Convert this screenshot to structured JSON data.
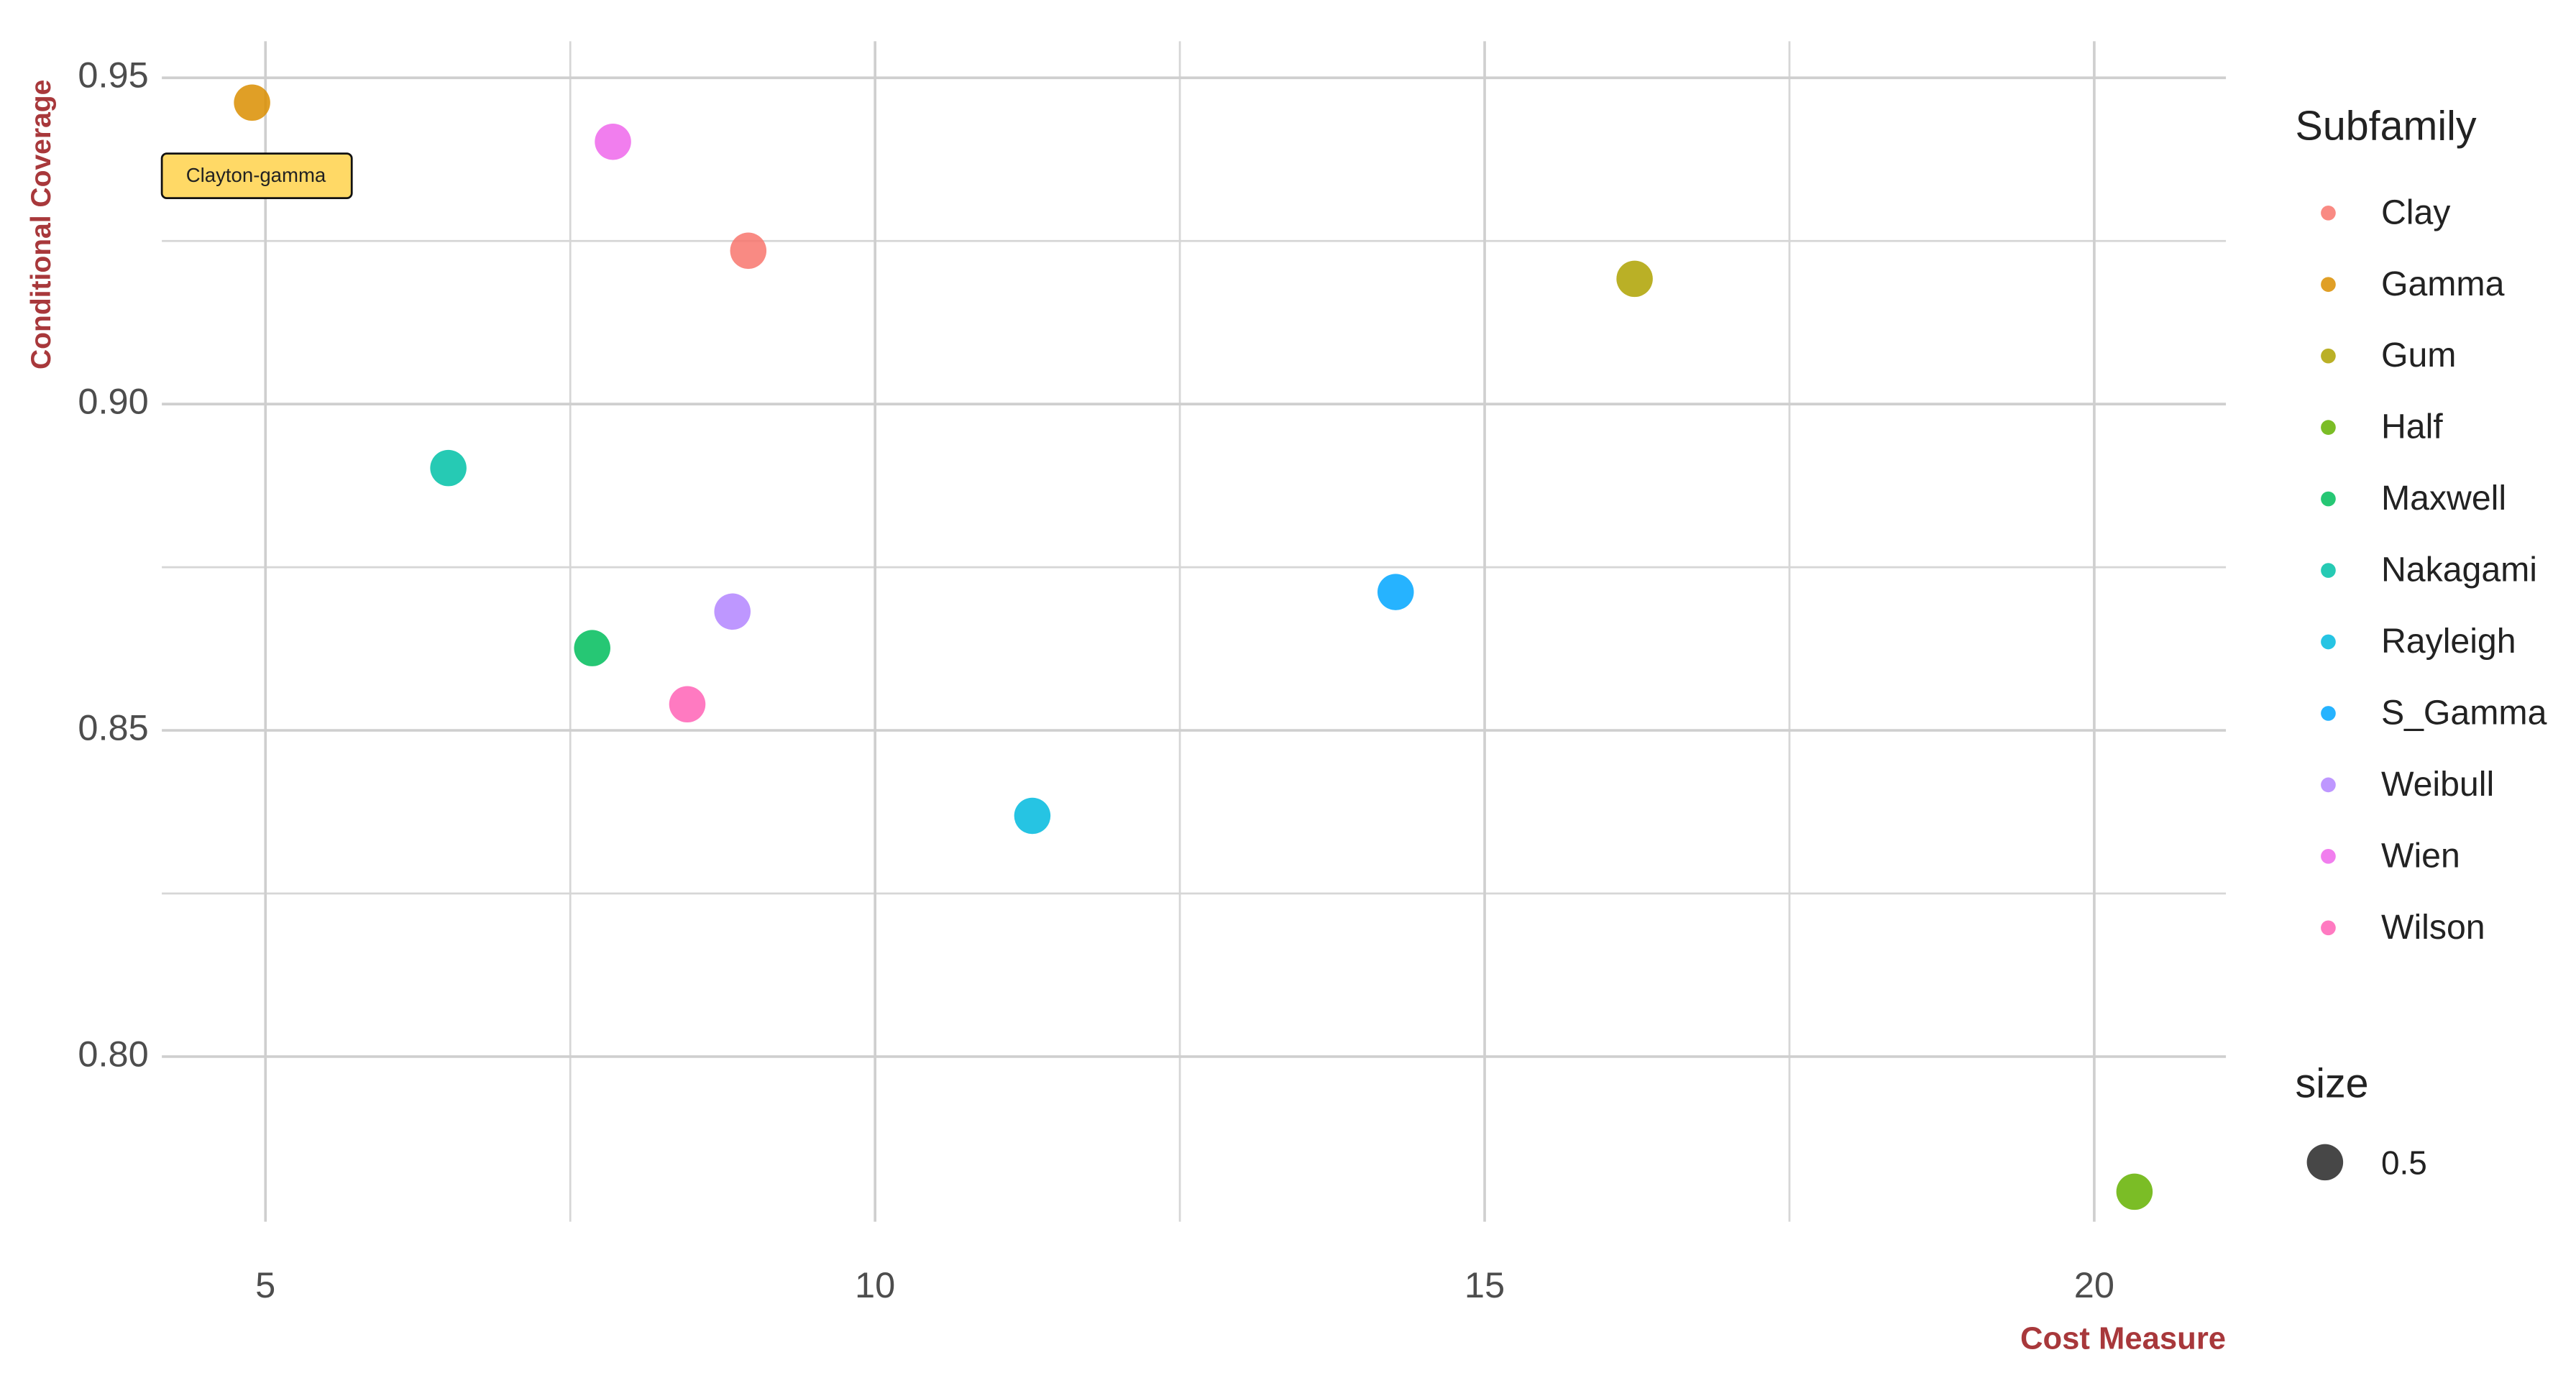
{
  "chart_data": {
    "type": "scatter",
    "xlabel": "Cost Measure",
    "ylabel": "Conditional Coverage",
    "xlim": [
      4.15,
      21.08
    ],
    "ylim": [
      0.7747,
      0.9556
    ],
    "xticks": [
      5,
      10,
      15,
      20
    ],
    "xminorticks": [
      7.5,
      12.5,
      17.5
    ],
    "yticks": [
      {
        "value": 0.8,
        "label": "0.80"
      },
      {
        "value": 0.85,
        "label": "0.85"
      },
      {
        "value": 0.9,
        "label": "0.90"
      },
      {
        "value": 0.95,
        "label": "0.95"
      }
    ],
    "yminorticks": [
      0.825,
      0.875,
      0.925
    ],
    "grid": true,
    "legend_title": "Subfamily",
    "legend": "right",
    "size_legend": {
      "title": "size",
      "value": 0.5
    },
    "annotation": {
      "text": "Clayton-gamma",
      "color": "#FFD966"
    },
    "series": [
      {
        "name": "Clay",
        "color": "#F8766D",
        "x": [
          8.96
        ],
        "values": [
          0.9235
        ]
      },
      {
        "name": "Gamma",
        "color": "#DB8E00",
        "x": [
          4.89
        ],
        "values": [
          0.9462
        ]
      },
      {
        "name": "Gum",
        "color": "#AEA200",
        "x": [
          16.23
        ],
        "values": [
          0.9192
        ]
      },
      {
        "name": "Half",
        "color": "#64B200",
        "x": [
          20.33
        ],
        "values": [
          0.7793
        ]
      },
      {
        "name": "Maxwell",
        "color": "#00BD5C",
        "x": [
          7.68
        ],
        "values": [
          0.8626
        ]
      },
      {
        "name": "Nakagami",
        "color": "#00C1A7",
        "x": [
          6.5
        ],
        "values": [
          0.8902
        ]
      },
      {
        "name": "Rayleigh",
        "color": "#00BADE",
        "x": [
          11.29
        ],
        "values": [
          0.8369
        ]
      },
      {
        "name": "S_Gamma",
        "color": "#00A6FF",
        "x": [
          14.27
        ],
        "values": [
          0.8712
        ]
      },
      {
        "name": "Weibull",
        "color": "#B385FF",
        "x": [
          8.83
        ],
        "values": [
          0.8682
        ]
      },
      {
        "name": "Wien",
        "color": "#EF67EB",
        "x": [
          7.85
        ],
        "values": [
          0.9402
        ]
      },
      {
        "name": "Wilson",
        "color": "#FF63B6",
        "x": [
          8.46
        ],
        "values": [
          0.854
        ]
      }
    ]
  }
}
